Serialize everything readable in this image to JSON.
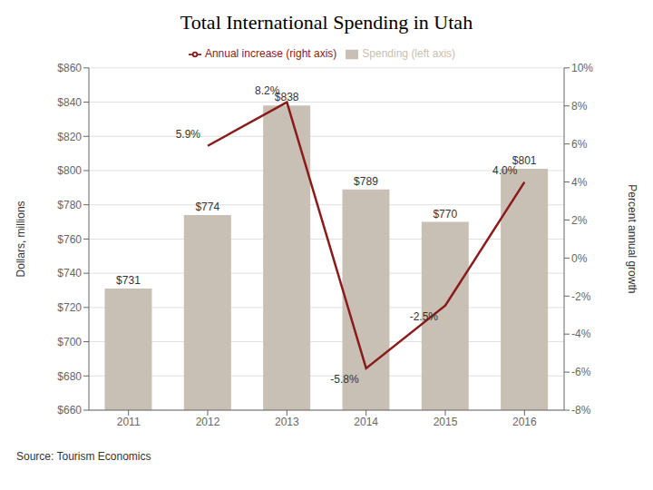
{
  "chart_data": {
    "type": "bar",
    "title": "Total International Spending in Utah",
    "y_label": "Dollars, millions",
    "y2_label": "Percent annual growth",
    "source": "Source: Tourism Economics",
    "categories": [
      "2011",
      "2012",
      "2013",
      "2014",
      "2015",
      "2016"
    ],
    "series": [
      {
        "name": "Spending (left axis)",
        "type": "bar",
        "color": "#C8C0B4",
        "values": [
          731,
          774,
          838,
          789,
          770,
          801
        ],
        "value_labels": [
          "$731",
          "$774",
          "$838",
          "$789",
          "$770",
          "$801"
        ]
      },
      {
        "name": "Annual increase (right axis)",
        "type": "line",
        "axis": "y2",
        "color": "#8B1A1A",
        "values": [
          null,
          5.9,
          8.2,
          -5.8,
          -2.5,
          4.0
        ],
        "value_labels": [
          null,
          "5.9%",
          "8.2%",
          "-5.8%",
          "-2.5%",
          "4.0%"
        ]
      }
    ],
    "ylim": [
      660,
      860
    ],
    "yticks": [
      {
        "value": 660,
        "label": "$660"
      },
      {
        "value": 680,
        "label": "$680"
      },
      {
        "value": 700,
        "label": "$700"
      },
      {
        "value": 720,
        "label": "$720"
      },
      {
        "value": 740,
        "label": "$740"
      },
      {
        "value": 760,
        "label": "$760"
      },
      {
        "value": 780,
        "label": "$780"
      },
      {
        "value": 800,
        "label": "$800"
      },
      {
        "value": 820,
        "label": "$820"
      },
      {
        "value": 840,
        "label": "$840"
      },
      {
        "value": 860,
        "label": "$860"
      }
    ],
    "y2lim": [
      -8,
      10
    ],
    "y2ticks": [
      {
        "value": -8,
        "label": "-8%"
      },
      {
        "value": -6,
        "label": "-6%"
      },
      {
        "value": -4,
        "label": "-4%"
      },
      {
        "value": -2,
        "label": "-2%"
      },
      {
        "value": 0,
        "label": "0%"
      },
      {
        "value": 2,
        "label": "2%"
      },
      {
        "value": 4,
        "label": "4%"
      },
      {
        "value": 6,
        "label": "6%"
      },
      {
        "value": 8,
        "label": "8%"
      },
      {
        "value": 10,
        "label": "10%"
      }
    ],
    "grid": true,
    "legend": "top",
    "data_labels": true
  }
}
